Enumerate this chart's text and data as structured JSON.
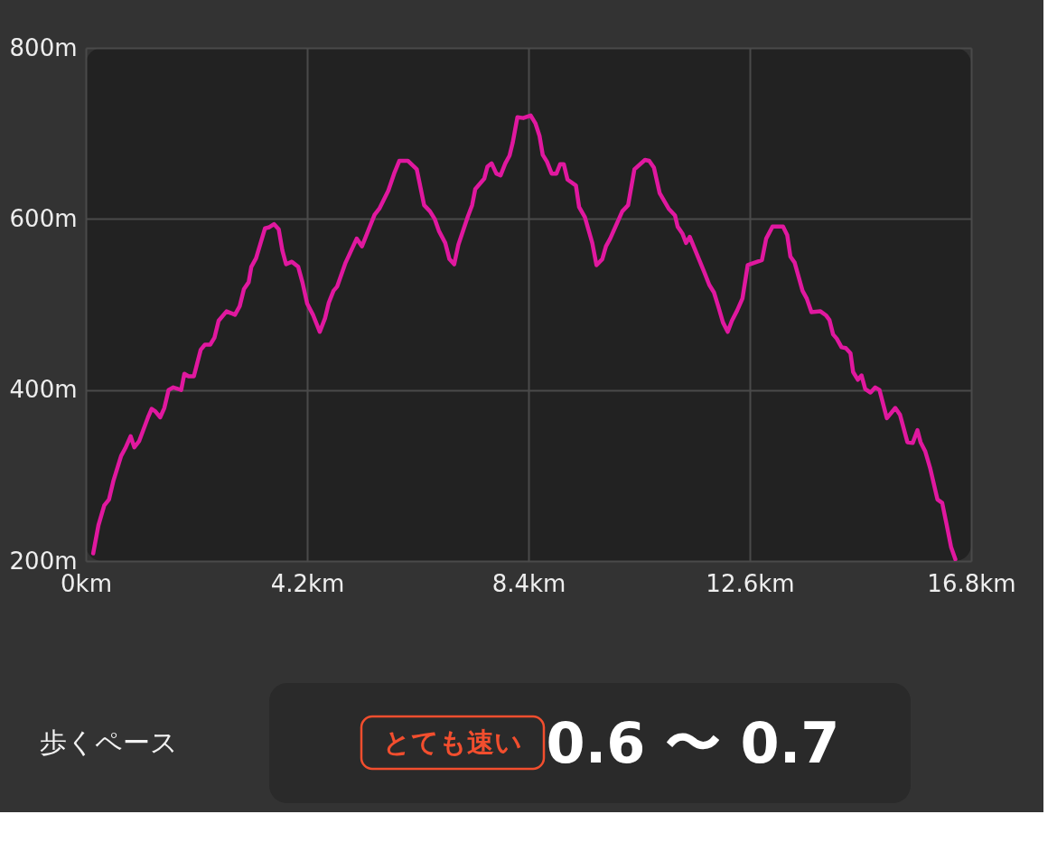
{
  "chart_data": {
    "type": "line",
    "x": [
      0.14,
      0.24,
      0.35,
      0.44,
      0.52,
      0.67,
      0.75,
      0.85,
      0.92,
      1.01,
      1.18,
      1.25,
      1.32,
      1.41,
      1.49,
      1.57,
      1.66,
      1.81,
      1.87,
      1.95,
      2.05,
      2.18,
      2.26,
      2.36,
      2.44,
      2.52,
      2.67,
      2.83,
      2.92,
      3.0,
      3.09,
      3.14,
      3.23,
      3.4,
      3.47,
      3.57,
      3.66,
      3.73,
      3.8,
      3.91,
      4.03,
      4.11,
      4.2,
      4.31,
      4.44,
      4.54,
      4.61,
      4.7,
      4.77,
      4.93,
      5.14,
      5.24,
      5.37,
      5.48,
      5.57,
      5.74,
      5.85,
      5.95,
      6.11,
      6.28,
      6.42,
      6.53,
      6.62,
      6.7,
      6.82,
      6.9,
      6.99,
      7.07,
      7.25,
      7.33,
      7.39,
      7.56,
      7.62,
      7.7,
      7.79,
      7.87,
      7.96,
      8.04,
      8.1,
      8.19,
      8.3,
      8.44,
      8.53,
      8.61,
      8.67,
      8.75,
      8.84,
      8.93,
      9.0,
      9.07,
      9.14,
      9.3,
      9.36,
      9.47,
      9.61,
      9.69,
      9.8,
      9.87,
      9.95,
      10.18,
      10.29,
      10.41,
      10.61,
      10.69,
      10.78,
      10.89,
      11.06,
      11.18,
      11.23,
      11.32,
      11.39,
      11.46,
      11.74,
      11.83,
      11.92,
      12.0,
      12.09,
      12.18,
      12.26,
      12.36,
      12.46,
      12.56,
      12.83,
      12.91,
      13.03,
      13.23,
      13.31,
      13.37,
      13.45,
      13.6,
      13.68,
      13.77,
      13.94,
      14.05,
      14.11,
      14.18,
      14.25,
      14.34,
      14.42,
      14.51,
      14.56,
      14.65,
      14.72,
      14.79,
      14.89,
      14.98,
      15.06,
      15.2,
      15.36,
      15.45,
      15.59,
      15.69,
      15.78,
      15.84,
      15.93,
      16.02,
      16.16,
      16.25,
      16.33,
      16.42,
      16.5
    ],
    "series": [
      {
        "color": "#e0189f",
        "values": [
          209,
          242,
          265,
          272,
          293,
          323,
          332,
          346,
          333,
          340,
          368,
          378,
          375,
          368,
          379,
          400,
          403,
          400,
          419,
          416,
          416,
          447,
          453,
          453,
          461,
          481,
          492,
          488,
          498,
          518,
          526,
          544,
          554,
          589,
          590,
          594,
          588,
          563,
          547,
          550,
          544,
          526,
          501,
          488,
          468,
          484,
          502,
          516,
          521,
          549,
          577,
          568,
          588,
          605,
          612,
          633,
          653,
          668,
          668,
          658,
          616,
          609,
          600,
          586,
          572,
          553,
          547,
          570,
          603,
          616,
          635,
          647,
          661,
          665,
          653,
          651,
          665,
          674,
          689,
          719,
          718,
          721,
          712,
          697,
          675,
          667,
          653,
          653,
          664,
          664,
          646,
          639,
          614,
          602,
          572,
          546,
          553,
          568,
          577,
          609,
          616,
          658,
          669,
          668,
          660,
          630,
          612,
          604,
          591,
          583,
          572,
          579,
          537,
          523,
          514,
          498,
          479,
          468,
          481,
          493,
          507,
          546,
          552,
          577,
          591,
          591,
          581,
          556,
          549,
          516,
          507,
          491,
          492,
          487,
          482,
          465,
          460,
          450,
          449,
          443,
          421,
          412,
          417,
          401,
          397,
          403,
          400,
          367,
          379,
          371,
          339,
          338,
          353,
          339,
          328,
          309,
          272,
          268,
          244,
          216,
          202
        ]
      }
    ],
    "xlim": [
      0,
      16.8
    ],
    "xticks": [
      {
        "value": 0,
        "label": "0km"
      },
      {
        "value": 4.2,
        "label": "4.2km"
      },
      {
        "value": 8.4,
        "label": "8.4km"
      },
      {
        "value": 12.6,
        "label": "12.6km"
      },
      {
        "value": 16.8,
        "label": "16.8km"
      }
    ],
    "ylim": [
      200,
      800
    ],
    "yticks": [
      {
        "value": 200,
        "label": "200m"
      },
      {
        "value": 400,
        "label": "400m"
      },
      {
        "value": 600,
        "label": "600m"
      },
      {
        "value": 800,
        "label": "800m"
      }
    ],
    "grid": true,
    "annotations": [
      "歩くペース",
      "とても速い",
      "0.6 〜 0.7"
    ]
  }
}
